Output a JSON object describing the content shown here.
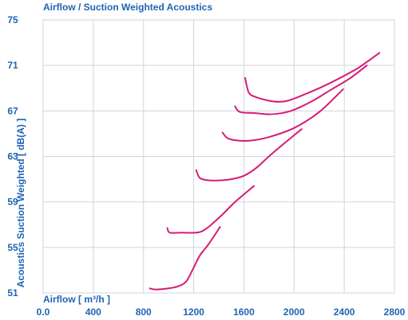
{
  "chart_data": {
    "type": "line",
    "title": "Airflow / Suction Weighted Acoustics",
    "xlabel": "Airflow [ m³/h ]",
    "ylabel": "Acoustics Suction Weighted [ dB(A) ]",
    "xlim": [
      0,
      2800
    ],
    "ylim": [
      51,
      75
    ],
    "xticks": [
      0,
      400,
      800,
      1200,
      1600,
      2000,
      2400,
      2800
    ],
    "xtick_labels": [
      "0.0",
      "400",
      "800",
      "1200",
      "1600",
      "2000",
      "2400",
      "2800"
    ],
    "yticks": [
      51,
      55,
      59,
      63,
      67,
      71,
      75
    ],
    "ytick_labels": [
      "51",
      "55",
      "59",
      "63",
      "67",
      "71",
      "75"
    ],
    "grid": true,
    "series": [
      {
        "points": [
          [
            850,
            51.4
          ],
          [
            900,
            51.3
          ],
          [
            1000,
            51.4
          ],
          [
            1080,
            51.6
          ],
          [
            1140,
            52.0
          ],
          [
            1190,
            53.0
          ],
          [
            1250,
            54.3
          ],
          [
            1320,
            55.3
          ],
          [
            1410,
            56.8
          ]
        ]
      },
      {
        "points": [
          [
            990,
            56.7
          ],
          [
            1010,
            56.3
          ],
          [
            1100,
            56.3
          ],
          [
            1220,
            56.3
          ],
          [
            1280,
            56.5
          ],
          [
            1340,
            57.0
          ],
          [
            1430,
            57.9
          ],
          [
            1530,
            59.0
          ],
          [
            1680,
            60.4
          ]
        ]
      },
      {
        "points": [
          [
            1220,
            61.8
          ],
          [
            1250,
            61.1
          ],
          [
            1320,
            60.9
          ],
          [
            1420,
            60.9
          ],
          [
            1500,
            61.0
          ],
          [
            1600,
            61.3
          ],
          [
            1700,
            62.0
          ],
          [
            1830,
            63.3
          ],
          [
            2060,
            65.4
          ]
        ]
      },
      {
        "points": [
          [
            1430,
            65.1
          ],
          [
            1470,
            64.6
          ],
          [
            1550,
            64.4
          ],
          [
            1660,
            64.4
          ],
          [
            1800,
            64.7
          ],
          [
            2000,
            65.5
          ],
          [
            2200,
            66.9
          ],
          [
            2390,
            68.9
          ]
        ]
      },
      {
        "points": [
          [
            1530,
            67.4
          ],
          [
            1570,
            66.9
          ],
          [
            1700,
            66.8
          ],
          [
            1800,
            66.7
          ],
          [
            1900,
            66.8
          ],
          [
            2000,
            67.1
          ],
          [
            2150,
            67.9
          ],
          [
            2300,
            68.9
          ],
          [
            2450,
            69.9
          ],
          [
            2580,
            71.0
          ]
        ]
      },
      {
        "points": [
          [
            1610,
            69.9
          ],
          [
            1640,
            68.6
          ],
          [
            1700,
            68.2
          ],
          [
            1800,
            67.9
          ],
          [
            1880,
            67.8
          ],
          [
            1950,
            67.9
          ],
          [
            2050,
            68.3
          ],
          [
            2200,
            69.0
          ],
          [
            2350,
            69.8
          ],
          [
            2500,
            70.7
          ],
          [
            2580,
            71.3
          ],
          [
            2680,
            72.1
          ]
        ]
      }
    ]
  },
  "colors": {
    "line": "#d81b76",
    "text": "#1f63b5",
    "grid": "#cfd5dd",
    "frame": "#9aa4b3"
  }
}
